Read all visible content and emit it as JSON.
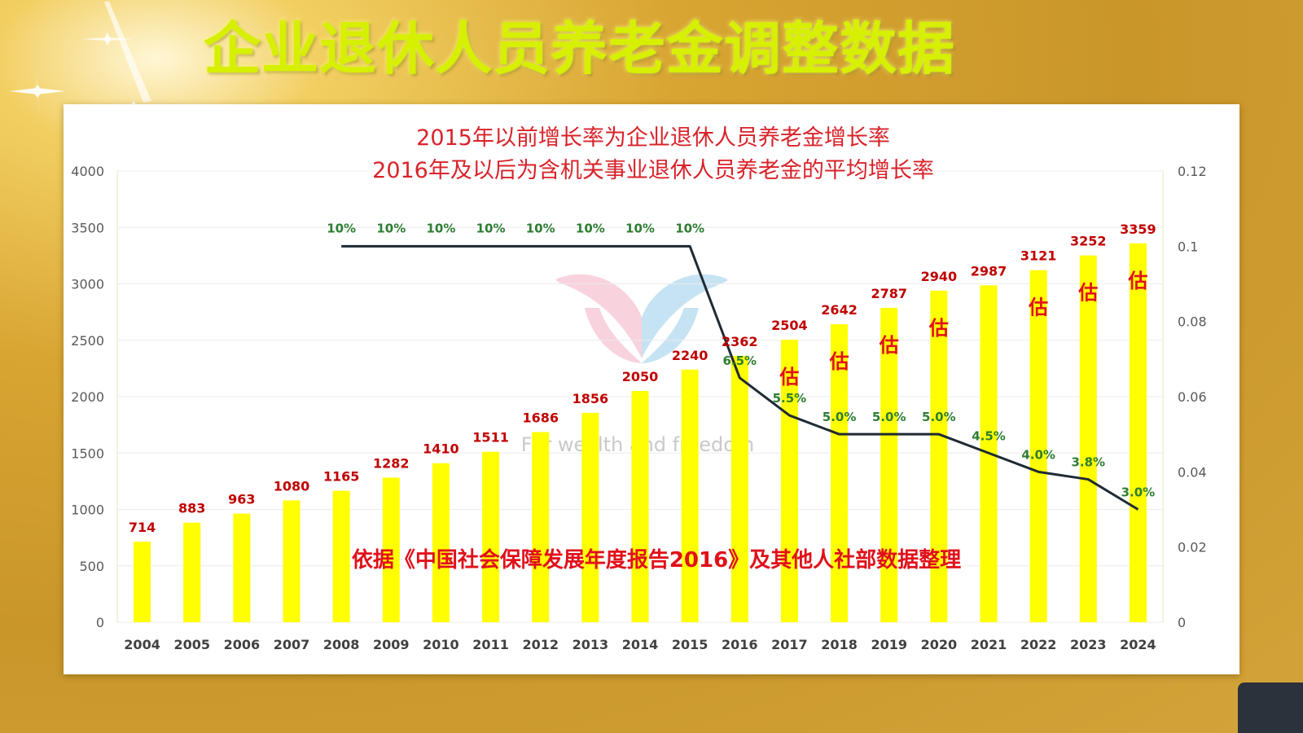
{
  "page_title": "企业退休人员养老金调整数据",
  "colors": {
    "bar": "#ffff00",
    "line": "#1f2a33",
    "value_label": "#c00000",
    "rate_label": "#2e7d32",
    "estimate": "#e0101a"
  },
  "chart_data": {
    "type": "bar",
    "title_lines": [
      "2015年以前增长率为企业退休人员养老金增长率",
      "2016年及以后为含机关事业退休人员养老金的平均增长率"
    ],
    "categories": [
      "2004",
      "2005",
      "2006",
      "2007",
      "2008",
      "2009",
      "2010",
      "2011",
      "2012",
      "2013",
      "2014",
      "2015",
      "2016",
      "2017",
      "2018",
      "2019",
      "2020",
      "2021",
      "2022",
      "2023",
      "2024"
    ],
    "series": [
      {
        "type": "bar",
        "values": [
          714,
          883,
          963,
          1080,
          1165,
          1282,
          1410,
          1511,
          1686,
          1856,
          2050,
          2240,
          2362,
          2504,
          2642,
          2787,
          2940,
          2987,
          3121,
          3252,
          3359
        ]
      },
      {
        "type": "line",
        "axis": "right",
        "x": [
          "2008",
          "2009",
          "2010",
          "2011",
          "2012",
          "2013",
          "2014",
          "2015",
          "2016",
          "2017",
          "2018",
          "2019",
          "2020",
          "2021",
          "2022",
          "2023",
          "2024"
        ],
        "values": [
          0.1,
          0.1,
          0.1,
          0.1,
          0.1,
          0.1,
          0.1,
          0.1,
          0.065,
          0.055,
          0.05,
          0.05,
          0.05,
          0.045,
          0.04,
          0.038,
          0.03
        ],
        "labels": [
          "10%",
          "10%",
          "10%",
          "10%",
          "10%",
          "10%",
          "10%",
          "10%",
          "6.5%",
          "5.5%",
          "5.0%",
          "5.0%",
          "5.0%",
          "4.5%",
          "4.0%",
          "3.8%",
          "3.0%"
        ]
      }
    ],
    "estimate_marker": "估",
    "estimate_categories": [
      "2017",
      "2018",
      "2019",
      "2020",
      "2022",
      "2023",
      "2024"
    ],
    "left_axis": {
      "ylim": [
        0,
        4000
      ],
      "ticks": [
        "0",
        "500",
        "1000",
        "1500",
        "2000",
        "2500",
        "3000",
        "3500",
        "4000"
      ]
    },
    "right_axis": {
      "ylim": [
        0,
        0.12
      ],
      "ticks": [
        "0",
        "0.02",
        "0.04",
        "0.06",
        "0.08",
        "0.1",
        "0.12"
      ]
    },
    "annotation": "依据《中国社会保障发展年度报告2016》及其他人社部数据整理",
    "watermark": "For wealth and freedom"
  }
}
